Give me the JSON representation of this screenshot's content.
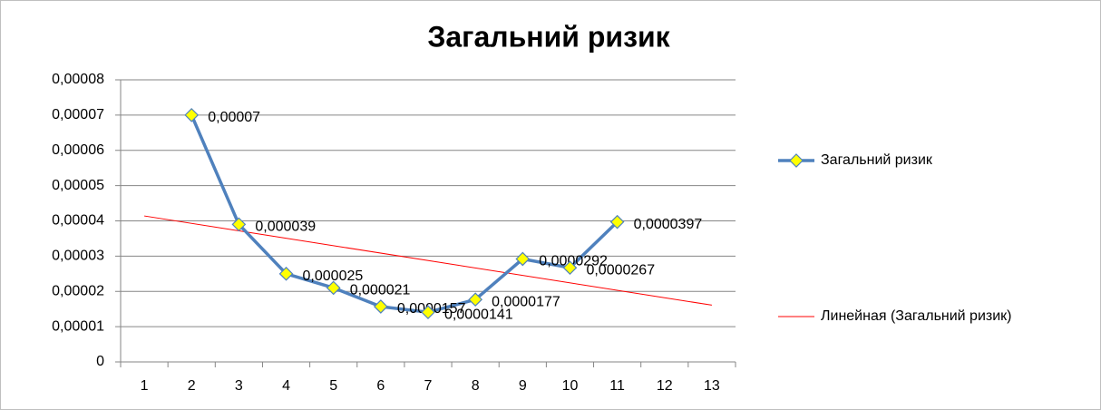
{
  "chart_data": {
    "type": "line",
    "title": "Загальний ризик",
    "categories": [
      1,
      2,
      3,
      4,
      5,
      6,
      7,
      8,
      9,
      10,
      11,
      12,
      13
    ],
    "series": [
      {
        "name": "Загальний ризик",
        "color": "#4f81bd",
        "marker_color": "#ffff00",
        "values": [
          null,
          7e-05,
          3.9e-05,
          2.5e-05,
          2.1e-05,
          1.57e-05,
          1.41e-05,
          1.77e-05,
          2.92e-05,
          2.67e-05,
          3.97e-05,
          null,
          null
        ],
        "value_labels": [
          null,
          "0,00007",
          "0,000039",
          "0,000025",
          "0,000021",
          "0,0000157",
          "0,0000141",
          "0,0000177",
          "0,0000292",
          "0,0000267",
          "0,0000397",
          null,
          null
        ]
      }
    ],
    "trendline": {
      "name": "Линейная (Загальний ризик)",
      "color": "#ff0000",
      "x": [
        1,
        13
      ],
      "values": [
        4.14e-05,
        1.61e-05
      ]
    },
    "ylim": [
      0,
      8e-05
    ],
    "yticks": [
      0,
      {
        "value": 1e-05,
        "label": "0,00001"
      },
      {
        "value": 2e-05,
        "label": "0,00002"
      },
      {
        "value": 3e-05,
        "label": "0,00003"
      },
      {
        "value": 4e-05,
        "label": "0,00004"
      },
      {
        "value": 5e-05,
        "label": "0,00005"
      },
      {
        "value": 6e-05,
        "label": "0,00006"
      },
      {
        "value": 7e-05,
        "label": "0,00007"
      },
      {
        "value": 8e-05,
        "label": "0,00008"
      }
    ],
    "grid": true,
    "legend": "right"
  }
}
